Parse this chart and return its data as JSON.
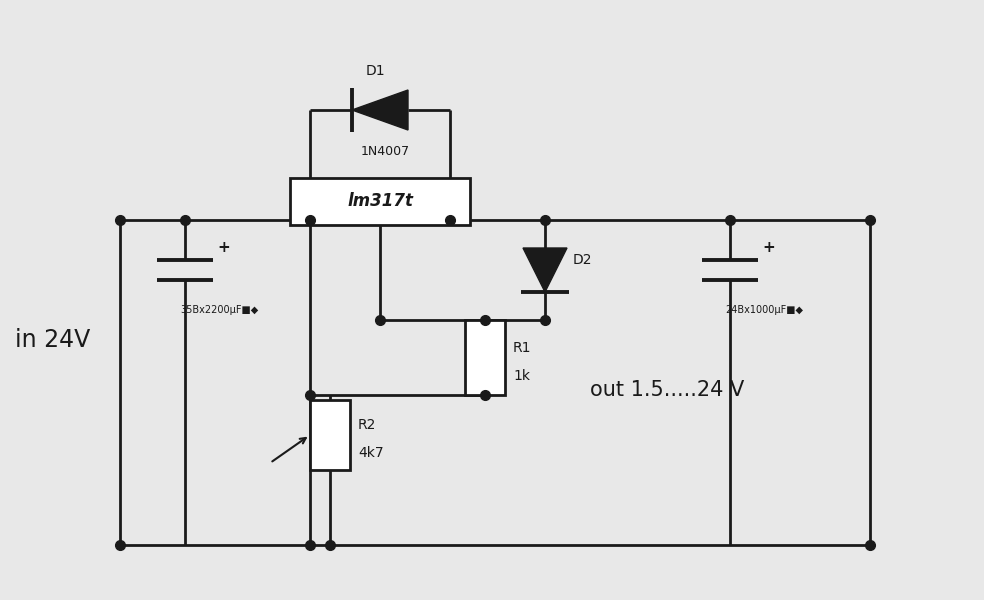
{
  "bg_color": "#e8e8e8",
  "line_color": "#1a1a1a",
  "line_width": 2.0,
  "label_in": "in 24V",
  "label_out": "out 1.5.....24 V",
  "label_lm317": "lm317t",
  "label_d1": "D1",
  "label_d1_val": "1N4007",
  "label_d2": "D2",
  "label_r1": "R1",
  "label_r1_val": "1k",
  "label_r2": "R2",
  "label_r2_val": "4k7",
  "label_c1": "35Bx2200μF■◆",
  "label_c2": "24Bx1000μF■◆"
}
